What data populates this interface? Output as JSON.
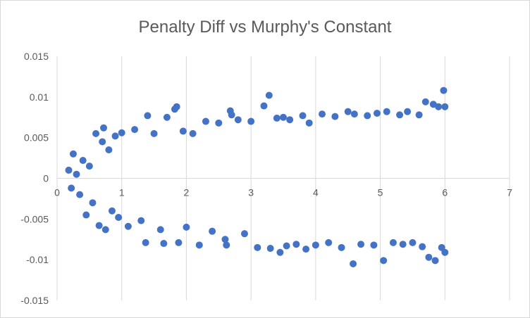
{
  "chart_data": {
    "type": "scatter",
    "title": "Penalty Diff vs Murphy's Constant",
    "xlabel": "",
    "ylabel": "",
    "xlim": [
      0,
      7
    ],
    "ylim": [
      -0.015,
      0.015
    ],
    "x_ticks": [
      "0",
      "1",
      "2",
      "3",
      "4",
      "5",
      "6",
      "7"
    ],
    "y_ticks": [
      "0.015",
      "0.01",
      "0.005",
      "0",
      "-0.005",
      "-0.01",
      "-0.015"
    ],
    "grid": {
      "vertical": true,
      "horizontal": false
    },
    "legend": "none",
    "marker_color": "#4472C4",
    "series": [
      {
        "points": [
          [
            0.18,
            0.001
          ],
          [
            0.22,
            -0.0012
          ],
          [
            0.25,
            0.003
          ],
          [
            0.3,
            0.0005
          ],
          [
            0.35,
            -0.002
          ],
          [
            0.4,
            0.0022
          ],
          [
            0.45,
            -0.0045
          ],
          [
            0.5,
            0.0015
          ],
          [
            0.55,
            -0.003
          ],
          [
            0.6,
            0.0055
          ],
          [
            0.65,
            -0.0058
          ],
          [
            0.7,
            0.0045
          ],
          [
            0.72,
            0.0062
          ],
          [
            0.75,
            -0.0063
          ],
          [
            0.8,
            0.0035
          ],
          [
            0.85,
            -0.004
          ],
          [
            0.9,
            0.0052
          ],
          [
            0.95,
            -0.0048
          ],
          [
            1.0,
            0.0056
          ],
          [
            1.1,
            -0.0059
          ],
          [
            1.2,
            0.006
          ],
          [
            1.3,
            -0.0052
          ],
          [
            1.4,
            0.0077
          ],
          [
            1.37,
            -0.0079
          ],
          [
            1.5,
            0.0055
          ],
          [
            1.6,
            -0.0063
          ],
          [
            1.7,
            0.0075
          ],
          [
            1.65,
            -0.008
          ],
          [
            1.82,
            0.0085
          ],
          [
            1.85,
            0.0088
          ],
          [
            1.88,
            -0.0079
          ],
          [
            1.95,
            0.0058
          ],
          [
            2.0,
            -0.006
          ],
          [
            2.1,
            0.0055
          ],
          [
            2.2,
            -0.0082
          ],
          [
            2.3,
            0.007
          ],
          [
            2.4,
            -0.0065
          ],
          [
            2.5,
            0.0068
          ],
          [
            2.6,
            -0.0075
          ],
          [
            2.7,
            0.0078
          ],
          [
            2.68,
            0.0083
          ],
          [
            2.62,
            -0.0082
          ],
          [
            2.8,
            0.0072
          ],
          [
            2.9,
            -0.0068
          ],
          [
            3.0,
            0.007
          ],
          [
            3.1,
            -0.0085
          ],
          [
            3.2,
            0.0089
          ],
          [
            3.28,
            0.0102
          ],
          [
            3.3,
            -0.0086
          ],
          [
            3.4,
            0.0074
          ],
          [
            3.45,
            -0.0091
          ],
          [
            3.5,
            0.0075
          ],
          [
            3.55,
            -0.0083
          ],
          [
            3.6,
            0.0072
          ],
          [
            3.7,
            -0.0081
          ],
          [
            3.8,
            0.0077
          ],
          [
            3.85,
            -0.0087
          ],
          [
            3.9,
            0.0068
          ],
          [
            4.0,
            -0.0082
          ],
          [
            4.1,
            0.0079
          ],
          [
            4.2,
            -0.0079
          ],
          [
            4.3,
            0.0076
          ],
          [
            4.4,
            -0.0085
          ],
          [
            4.5,
            0.0082
          ],
          [
            4.58,
            -0.0105
          ],
          [
            4.6,
            0.0079
          ],
          [
            4.7,
            -0.0081
          ],
          [
            4.8,
            0.0077
          ],
          [
            4.9,
            -0.0082
          ],
          [
            4.95,
            0.008
          ],
          [
            5.05,
            -0.0101
          ],
          [
            5.1,
            0.0082
          ],
          [
            5.2,
            -0.0079
          ],
          [
            5.3,
            0.0078
          ],
          [
            5.35,
            -0.0081
          ],
          [
            5.42,
            0.0082
          ],
          [
            5.5,
            -0.0079
          ],
          [
            5.6,
            0.0078
          ],
          [
            5.65,
            -0.0084
          ],
          [
            5.7,
            0.0094
          ],
          [
            5.75,
            -0.0097
          ],
          [
            5.82,
            0.0091
          ],
          [
            5.85,
            -0.0101
          ],
          [
            5.9,
            0.0088
          ],
          [
            5.95,
            -0.0085
          ],
          [
            5.98,
            0.0108
          ],
          [
            6.0,
            -0.0091
          ],
          [
            6.0,
            0.0088
          ]
        ]
      }
    ]
  }
}
